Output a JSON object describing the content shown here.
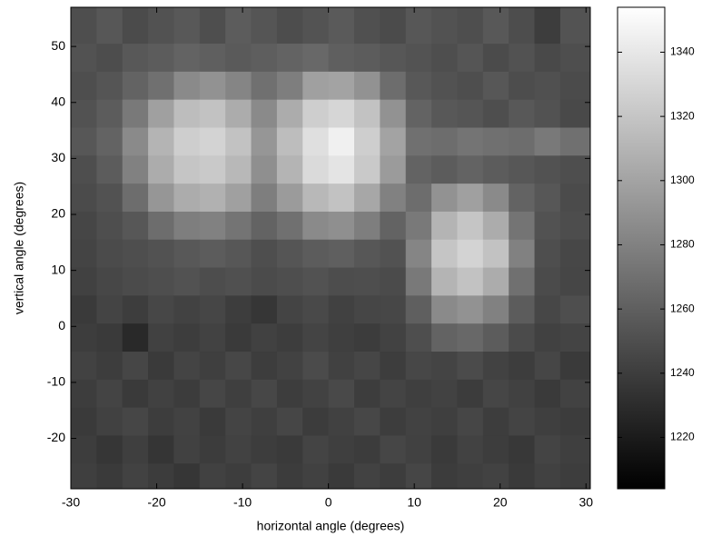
{
  "chart_data": {
    "type": "heatmap",
    "colormap": "gray",
    "xlabel": "horizontal angle (degrees)",
    "ylabel": "vertical angle (degrees)",
    "xlim": [
      -30,
      30.5
    ],
    "ylim": [
      -29,
      57
    ],
    "xticks": [
      -30,
      -20,
      -10,
      0,
      10,
      20,
      30
    ],
    "yticks": [
      -20,
      -10,
      0,
      10,
      20,
      30,
      40,
      50
    ],
    "clim": [
      1204,
      1354
    ],
    "cticks": [
      1220,
      1240,
      1260,
      1280,
      1300,
      1320,
      1340
    ],
    "x": [
      -28.5,
      -25.5,
      -22.5,
      -19.5,
      -16.5,
      -13.5,
      -10.5,
      -7.5,
      -4.5,
      -1.5,
      1.5,
      4.5,
      7.5,
      10.5,
      13.5,
      16.5,
      19.5,
      22.5,
      25.5,
      28.5
    ],
    "y": [
      53,
      48,
      43,
      38,
      33,
      28,
      23,
      18,
      13,
      8,
      3,
      -2,
      -7,
      -12,
      -17,
      -22,
      -27
    ],
    "z": [
      [
        1250,
        1255,
        1248,
        1252,
        1256,
        1250,
        1258,
        1254,
        1249,
        1253,
        1257,
        1251,
        1248,
        1255,
        1252,
        1250,
        1256,
        1249,
        1240,
        1253
      ],
      [
        1252,
        1249,
        1256,
        1258,
        1262,
        1260,
        1257,
        1259,
        1262,
        1265,
        1260,
        1258,
        1255,
        1253,
        1250,
        1254,
        1248,
        1252,
        1247,
        1250
      ],
      [
        1250,
        1254,
        1262,
        1270,
        1285,
        1290,
        1282,
        1270,
        1278,
        1298,
        1300,
        1290,
        1268,
        1256,
        1252,
        1250,
        1255,
        1249,
        1251,
        1248
      ],
      [
        1252,
        1258,
        1275,
        1298,
        1315,
        1318,
        1305,
        1285,
        1305,
        1325,
        1330,
        1318,
        1290,
        1262,
        1256,
        1254,
        1250,
        1256,
        1252,
        1247
      ],
      [
        1255,
        1262,
        1285,
        1310,
        1325,
        1328,
        1318,
        1292,
        1315,
        1335,
        1345,
        1325,
        1300,
        1270,
        1268,
        1272,
        1270,
        1268,
        1275,
        1270
      ],
      [
        1250,
        1258,
        1280,
        1305,
        1320,
        1322,
        1312,
        1288,
        1310,
        1332,
        1338,
        1322,
        1295,
        1262,
        1258,
        1262,
        1258,
        1255,
        1252,
        1250
      ],
      [
        1248,
        1252,
        1268,
        1292,
        1305,
        1308,
        1298,
        1278,
        1295,
        1312,
        1318,
        1302,
        1280,
        1268,
        1290,
        1298,
        1285,
        1262,
        1255,
        1248
      ],
      [
        1245,
        1250,
        1255,
        1268,
        1278,
        1280,
        1272,
        1262,
        1270,
        1285,
        1288,
        1278,
        1262,
        1275,
        1310,
        1320,
        1305,
        1272,
        1252,
        1249
      ],
      [
        1244,
        1248,
        1250,
        1252,
        1256,
        1258,
        1255,
        1250,
        1254,
        1258,
        1260,
        1255,
        1252,
        1282,
        1320,
        1328,
        1318,
        1280,
        1250,
        1246
      ],
      [
        1242,
        1246,
        1248,
        1250,
        1252,
        1249,
        1251,
        1248,
        1250,
        1252,
        1249,
        1250,
        1248,
        1275,
        1310,
        1318,
        1305,
        1270,
        1248,
        1245
      ],
      [
        1238,
        1244,
        1240,
        1246,
        1243,
        1245,
        1240,
        1236,
        1244,
        1247,
        1242,
        1245,
        1246,
        1260,
        1285,
        1290,
        1280,
        1258,
        1246,
        1250
      ],
      [
        1240,
        1238,
        1228,
        1242,
        1240,
        1243,
        1238,
        1242,
        1240,
        1244,
        1241,
        1239,
        1243,
        1250,
        1262,
        1265,
        1258,
        1248,
        1242,
        1244
      ],
      [
        1243,
        1240,
        1245,
        1238,
        1244,
        1241,
        1246,
        1240,
        1243,
        1248,
        1242,
        1245,
        1240,
        1246,
        1244,
        1248,
        1243,
        1240,
        1245,
        1238
      ],
      [
        1240,
        1244,
        1238,
        1242,
        1239,
        1245,
        1241,
        1246,
        1240,
        1243,
        1247,
        1240,
        1244,
        1241,
        1243,
        1239,
        1245,
        1242,
        1238,
        1243
      ],
      [
        1238,
        1242,
        1245,
        1240,
        1243,
        1238,
        1244,
        1241,
        1245,
        1239,
        1242,
        1246,
        1240,
        1243,
        1241,
        1245,
        1240,
        1244,
        1241,
        1239
      ],
      [
        1240,
        1236,
        1241,
        1235,
        1242,
        1239,
        1243,
        1240,
        1238,
        1244,
        1241,
        1239,
        1245,
        1242,
        1238,
        1243,
        1240,
        1237,
        1244,
        1241
      ],
      [
        1241,
        1238,
        1243,
        1239,
        1236,
        1242,
        1240,
        1244,
        1239,
        1242,
        1238,
        1243,
        1240,
        1245,
        1239,
        1241,
        1243,
        1238,
        1242,
        1240
      ]
    ]
  }
}
